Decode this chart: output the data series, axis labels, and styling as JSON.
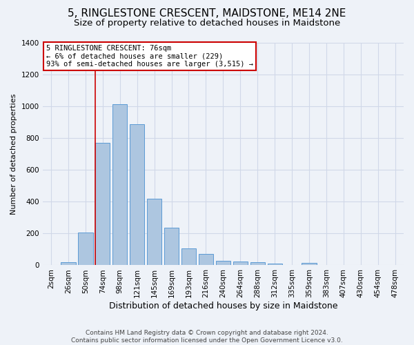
{
  "title": "5, RINGLESTONE CRESCENT, MAIDSTONE, ME14 2NE",
  "subtitle": "Size of property relative to detached houses in Maidstone",
  "xlabel": "Distribution of detached houses by size in Maidstone",
  "ylabel": "Number of detached properties",
  "bar_labels": [
    "2sqm",
    "26sqm",
    "50sqm",
    "74sqm",
    "98sqm",
    "121sqm",
    "145sqm",
    "169sqm",
    "193sqm",
    "216sqm",
    "240sqm",
    "264sqm",
    "288sqm",
    "312sqm",
    "335sqm",
    "359sqm",
    "383sqm",
    "407sqm",
    "430sqm",
    "454sqm",
    "478sqm"
  ],
  "bar_values": [
    0,
    20,
    205,
    770,
    1010,
    885,
    420,
    235,
    108,
    70,
    27,
    22,
    18,
    10,
    0,
    13,
    0,
    0,
    0,
    0,
    0
  ],
  "bar_color": "#adc6e0",
  "bar_edge_color": "#5b9bd5",
  "grid_color": "#d0d8e8",
  "background_color": "#eef2f8",
  "annotation_line1": "5 RINGLESTONE CRESCENT: 76sqm",
  "annotation_line2": "← 6% of detached houses are smaller (229)",
  "annotation_line3": "93% of semi-detached houses are larger (3,515) →",
  "vline_color": "#cc0000",
  "annotation_box_color": "#ffffff",
  "annotation_box_edge": "#cc0000",
  "footer_text": "Contains HM Land Registry data © Crown copyright and database right 2024.\nContains public sector information licensed under the Open Government Licence v3.0.",
  "ylim": [
    0,
    1400
  ],
  "yticks": [
    0,
    200,
    400,
    600,
    800,
    1000,
    1200,
    1400
  ],
  "title_fontsize": 11,
  "subtitle_fontsize": 9.5,
  "xlabel_fontsize": 9,
  "ylabel_fontsize": 8,
  "tick_fontsize": 7.5,
  "footer_fontsize": 6.5,
  "annotation_fontsize": 7.5
}
